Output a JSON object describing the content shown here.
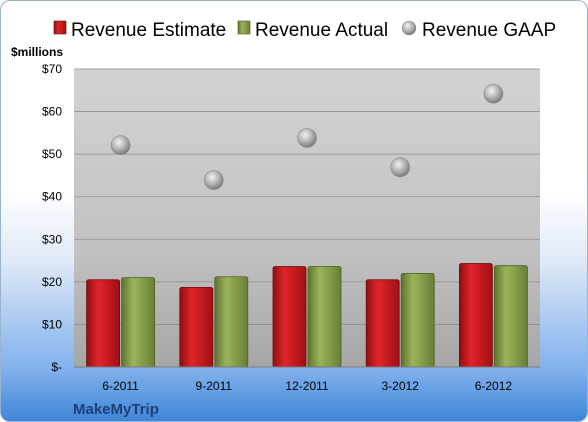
{
  "chart_data": {
    "type": "bar",
    "unit_label": "$millions",
    "categories": [
      "6-2011",
      "9-2011",
      "12-2011",
      "3-2012",
      "6-2012"
    ],
    "series": [
      {
        "name": "Revenue Estimate",
        "kind": "bar",
        "color": "#c8181d",
        "values": [
          20.5,
          18.7,
          23.6,
          20.5,
          24.3
        ]
      },
      {
        "name": "Revenue Actual",
        "kind": "bar",
        "color": "#8aa04a",
        "values": [
          21.0,
          21.2,
          23.6,
          22.0,
          23.8
        ]
      },
      {
        "name": "Revenue GAAP",
        "kind": "scatter",
        "color": "#a9a9a9",
        "values": [
          52.1,
          43.9,
          53.8,
          46.9,
          64.2
        ]
      }
    ],
    "ylim": [
      0,
      70
    ],
    "yticks": [
      0,
      10,
      20,
      30,
      40,
      50,
      60,
      70
    ],
    "ytick_labels": [
      "$-",
      "$10",
      "$20",
      "$30",
      "$40",
      "$50",
      "$60",
      "$70"
    ],
    "grid": true,
    "legend_position": "top",
    "company": "MakeMyTrip"
  }
}
